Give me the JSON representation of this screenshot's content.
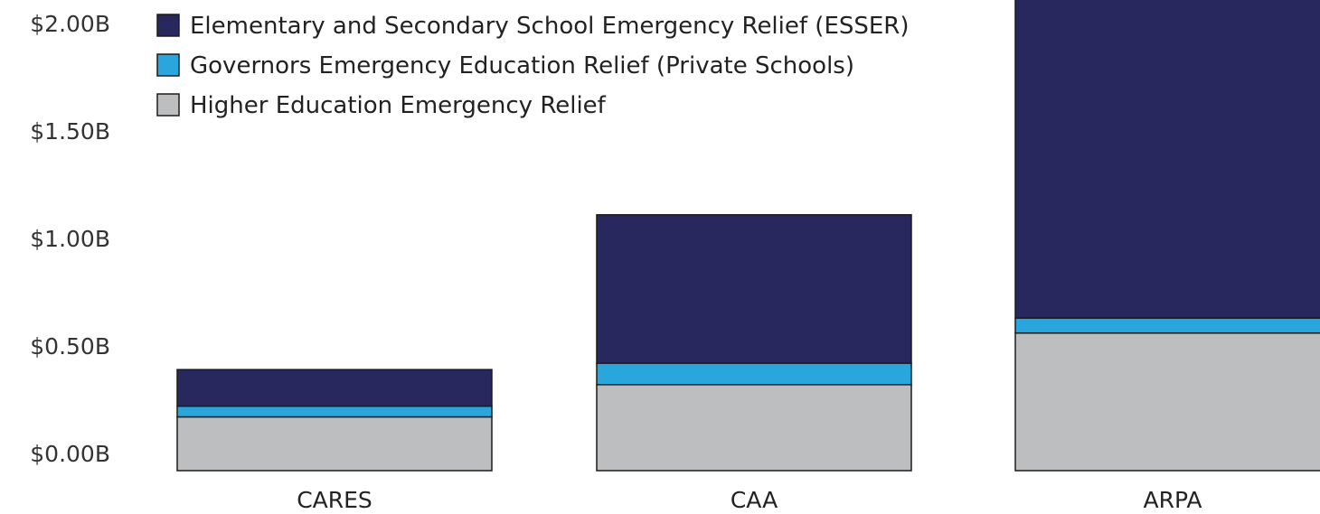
{
  "chart_data": {
    "type": "bar",
    "stacked": true,
    "categories": [
      "CARES",
      "CAA",
      "ARPA"
    ],
    "series": [
      {
        "name": "Higher Education Emergency Relief",
        "color": "#bdbec0",
        "values": [
          0.17,
          0.32,
          0.56
        ]
      },
      {
        "name": "Governors Emergency Education Relief (Private Schools)",
        "color": "#29a7dc",
        "values": [
          0.05,
          0.1,
          0.07
        ]
      },
      {
        "name": "Elementary and Secondary School Emergency Relief (ESSER)",
        "color": "#29285e",
        "values": [
          0.17,
          0.69,
          1.53
        ]
      }
    ],
    "legend_order": [
      2,
      1,
      0
    ],
    "yticks": [
      "$0.00B",
      "$0.50B",
      "$1.00B",
      "$1.50B",
      "$2.00B"
    ],
    "ytick_values": [
      0,
      0.5,
      1.0,
      1.5,
      2.0
    ],
    "ylim": [
      -0.08,
      2.17
    ],
    "legend_position": "top-left",
    "grid": false,
    "title": "",
    "xlabel": "",
    "ylabel": ""
  }
}
